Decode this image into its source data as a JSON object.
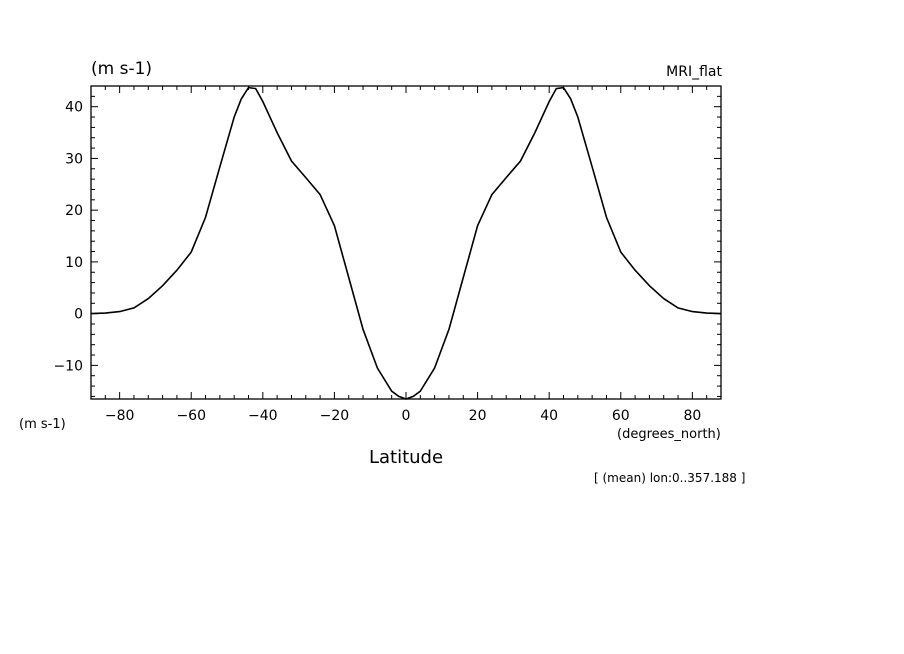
{
  "header": {
    "units_top_left": "(m s-1)",
    "dataset_name": "MRI_flat"
  },
  "axes_text": {
    "y_units_bottom_left": "(m s-1)",
    "x_units": "(degrees_north)",
    "x_title": "Latitude",
    "footnote": "[ (mean) lon:0..357.188 ]"
  },
  "chart_data": {
    "type": "line",
    "title": "",
    "xlabel": "Latitude",
    "ylabel": "(m s-1)",
    "xlim": [
      -88,
      88
    ],
    "ylim": [
      -16.5,
      44
    ],
    "x_ticks": [
      -80,
      -60,
      -40,
      -20,
      0,
      20,
      40,
      60,
      80
    ],
    "y_ticks": [
      -10,
      0,
      10,
      20,
      30,
      40
    ],
    "grid": false,
    "series": [
      {
        "x": [
          -88,
          -84,
          -80,
          -76,
          -72,
          -68,
          -64,
          -60,
          -56,
          -52,
          -48,
          -46,
          -44,
          -42,
          -40,
          -36,
          -32,
          -28,
          -24,
          -20,
          -16,
          -12,
          -8,
          -4,
          -2,
          0,
          2,
          4,
          8,
          12,
          16,
          20,
          24,
          28,
          32,
          36,
          40,
          42,
          44,
          46,
          48,
          52,
          56,
          60,
          64,
          68,
          72,
          76,
          80,
          84,
          88
        ],
        "y": [
          0.0,
          0.1,
          0.4,
          1.1,
          2.9,
          5.4,
          8.4,
          11.9,
          18.6,
          28.4,
          38.0,
          41.5,
          43.7,
          43.5,
          41.0,
          35.0,
          29.5,
          26.3,
          23.0,
          17.0,
          7.0,
          -3.0,
          -10.5,
          -15.0,
          -16.0,
          -16.5,
          -16.0,
          -15.0,
          -10.5,
          -3.0,
          7.0,
          17.0,
          23.0,
          26.3,
          29.5,
          35.0,
          41.0,
          43.5,
          43.7,
          41.5,
          38.0,
          28.4,
          18.6,
          11.9,
          8.4,
          5.4,
          2.9,
          1.1,
          0.4,
          0.1,
          0.0
        ]
      }
    ]
  }
}
